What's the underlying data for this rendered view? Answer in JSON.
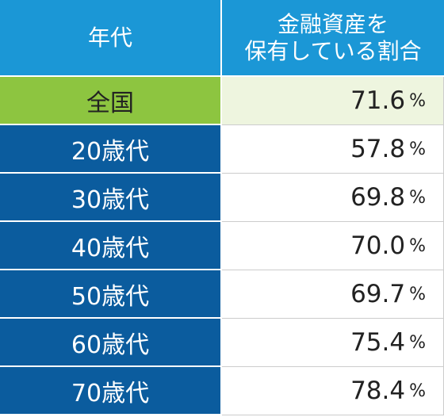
{
  "table": {
    "header": [
      [
        "年代"
      ],
      [
        "金融資産を",
        "保有している割合"
      ]
    ],
    "rows": [
      {
        "label": "全国",
        "value": "71.6",
        "unit": "%"
      },
      {
        "label": "20歳代",
        "value": "57.8",
        "unit": "%"
      },
      {
        "label": "30歳代",
        "value": "69.8",
        "unit": "%"
      },
      {
        "label": "40歳代",
        "value": "70.0",
        "unit": "%"
      },
      {
        "label": "50歳代",
        "value": "69.7",
        "unit": "%"
      },
      {
        "label": "60歳代",
        "value": "75.4",
        "unit": "%"
      },
      {
        "label": "70歳代",
        "value": "78.4",
        "unit": "%"
      }
    ]
  }
}
